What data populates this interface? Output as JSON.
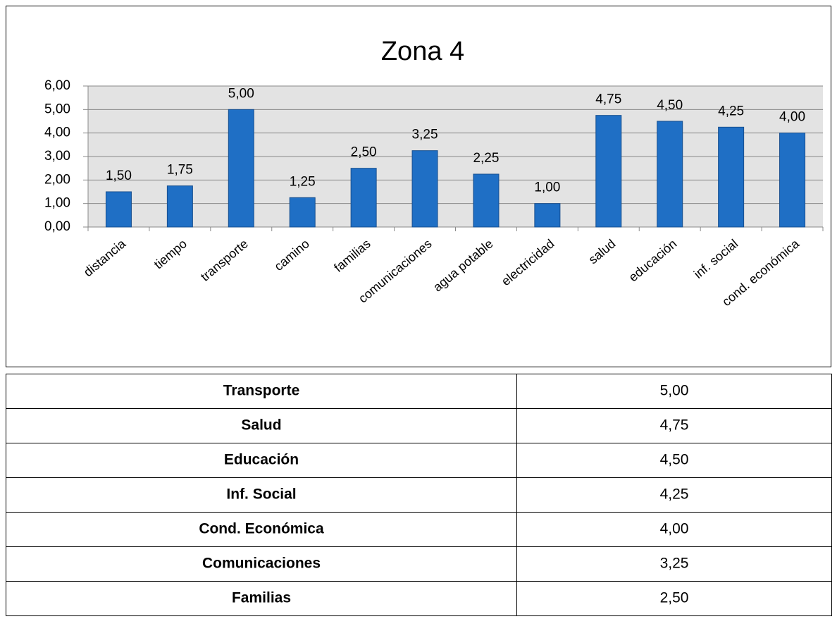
{
  "chart_data": {
    "type": "bar",
    "title": "Zona 4",
    "categories": [
      "distancia",
      "tiempo",
      "transporte",
      "camino",
      "familias",
      "comunicaciones",
      "agua potable",
      "electricidad",
      "salud",
      "educación",
      "inf. social",
      "cond. económica"
    ],
    "values": [
      1.5,
      1.75,
      5,
      1.25,
      2.5,
      3.25,
      2.25,
      1,
      4.75,
      4.5,
      4.25,
      4
    ],
    "value_labels": [
      "1,50",
      "1,75",
      "5,00",
      "1,25",
      "2,50",
      "3,25",
      "2,25",
      "1,00",
      "4,75",
      "4,50",
      "4,25",
      "4,00"
    ],
    "color": "#1f6fc5",
    "ylim": [
      0,
      6
    ],
    "yticks": [
      {
        "value": 0,
        "label": "0,00"
      },
      {
        "value": 1,
        "label": "1,00"
      },
      {
        "value": 2,
        "label": "2,00"
      },
      {
        "value": 3,
        "label": "3,00"
      },
      {
        "value": 4,
        "label": "4,00"
      },
      {
        "value": 5,
        "label": "5,00"
      },
      {
        "value": 6,
        "label": "6,00"
      }
    ],
    "grid": true
  },
  "table": {
    "rows": [
      [
        "Transporte",
        "5,00"
      ],
      [
        "Salud",
        "4,75"
      ],
      [
        "Educación",
        "4,50"
      ],
      [
        "Inf. Social",
        "4,25"
      ],
      [
        "Cond.  Económica",
        "4,00"
      ],
      [
        "Comunicaciones",
        "3,25"
      ],
      [
        "Familias",
        "2,50"
      ]
    ]
  }
}
